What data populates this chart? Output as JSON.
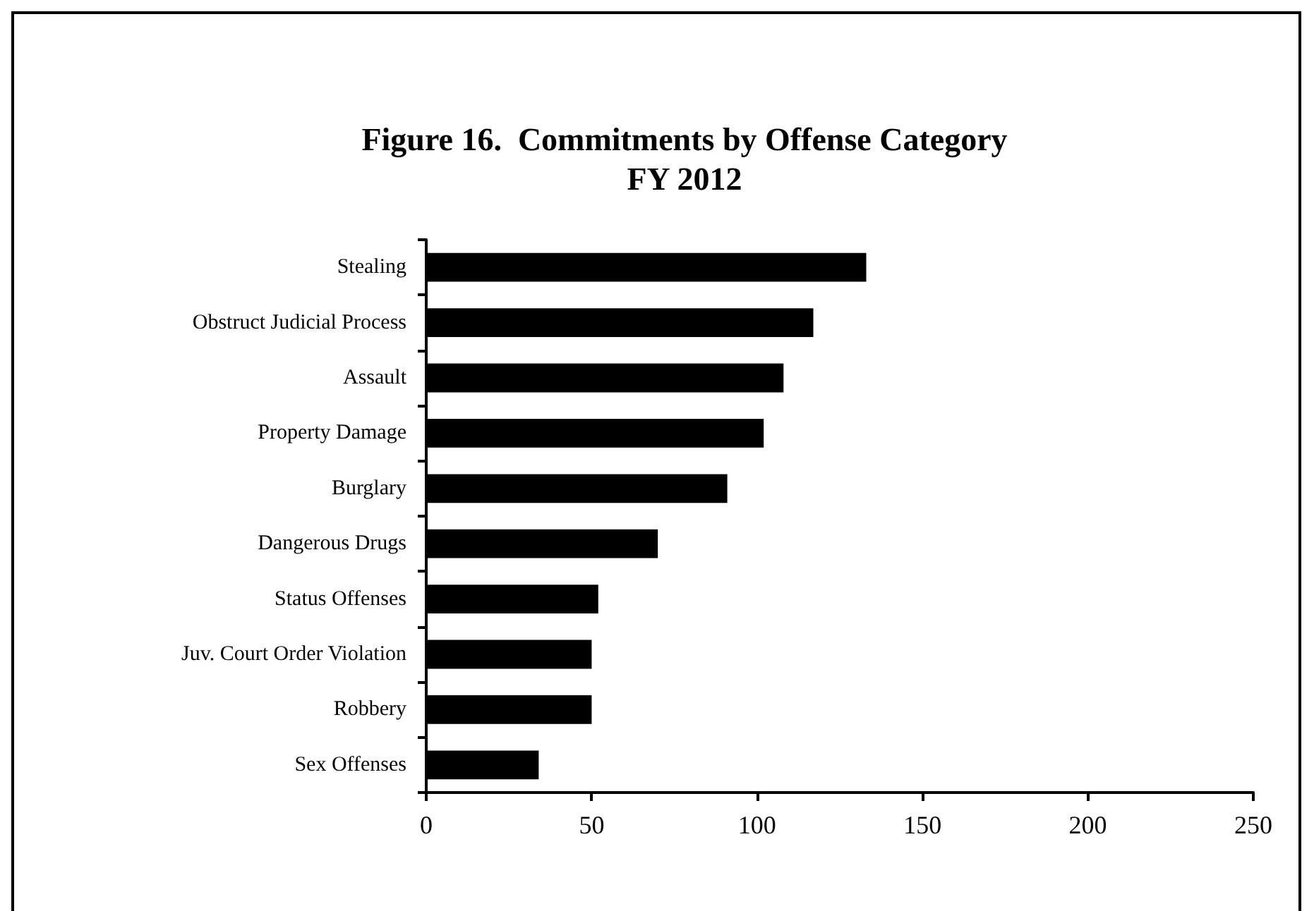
{
  "chart_data": {
    "type": "bar",
    "orientation": "horizontal",
    "title": "Figure 16.  Commitments by Offense Category\nFY 2012",
    "categories": [
      "Stealing",
      "Obstruct Judicial Process",
      "Assault",
      "Property Damage",
      "Burglary",
      "Dangerous Drugs",
      "Status Offenses",
      "Juv. Court Order Violation",
      "Robbery",
      "Sex Offenses"
    ],
    "values": [
      133,
      117,
      108,
      102,
      91,
      70,
      52,
      50,
      50,
      34
    ],
    "color": "#000000",
    "xlim": [
      0,
      250
    ],
    "xticks": [
      0,
      50,
      100,
      150,
      200,
      250
    ],
    "grid": false
  }
}
